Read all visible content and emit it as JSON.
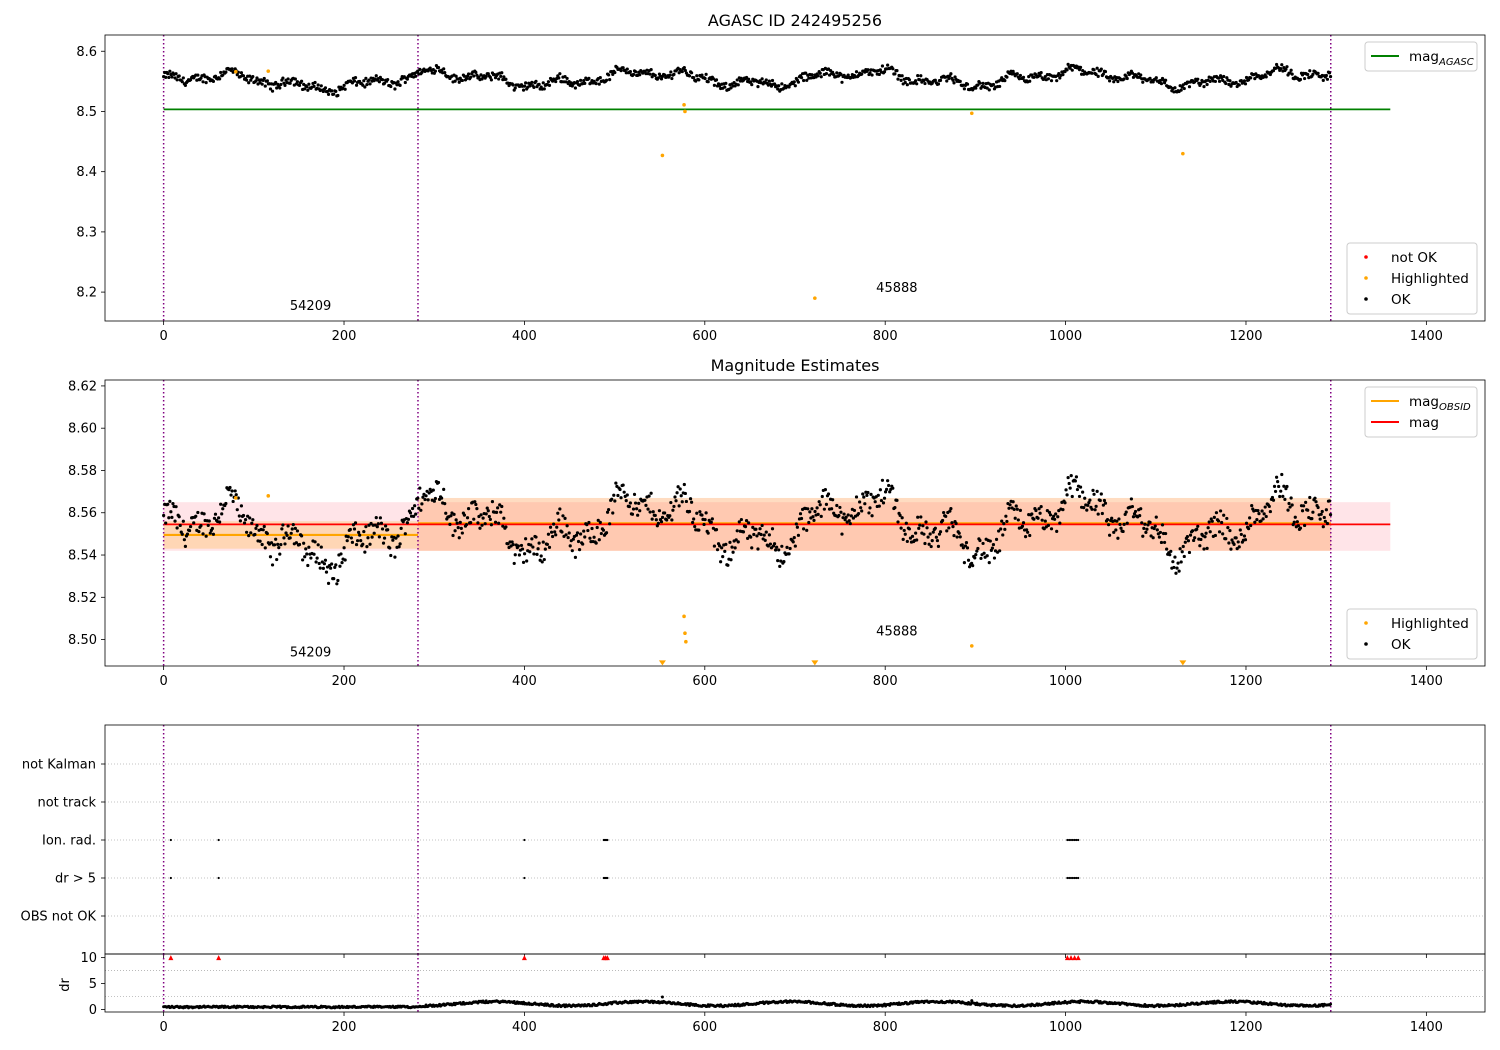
{
  "chart_data": [
    {
      "type": "scatter",
      "title": "AGASC ID 242495256",
      "xlim": [
        -65,
        1465
      ],
      "ylim": [
        8.152,
        8.627
      ],
      "xticks": [
        0,
        200,
        400,
        600,
        800,
        1000,
        1200,
        1400
      ],
      "yticks": [
        8.2,
        8.3,
        8.4,
        8.5,
        8.6
      ],
      "obs_boundaries": [
        0,
        282,
        1294
      ],
      "obsids": [
        {
          "label": "54209",
          "x": 140,
          "y": 8.17
        },
        {
          "label": "45888",
          "x": 790,
          "y": 8.2
        }
      ],
      "lines": [
        {
          "name": "mag_AGASC",
          "y": 8.5035,
          "x": [
            0,
            1360
          ],
          "color": "#008000"
        }
      ],
      "series": [
        {
          "name": "not OK",
          "color": "#ff0000",
          "points": []
        },
        {
          "name": "Highlighted",
          "color": "#ffa500",
          "points": [
            [
              553,
              8.427
            ],
            [
              577,
              8.511
            ],
            [
              578,
              8.5
            ],
            [
              722,
              8.19
            ],
            [
              896,
              8.497
            ],
            [
              1130,
              8.43
            ],
            [
              80,
              8.566
            ],
            [
              116,
              8.567
            ]
          ]
        },
        {
          "name": "OK",
          "color": "#000000",
          "generated": "ok_series"
        }
      ],
      "legends": [
        {
          "position": "upper right",
          "entries": [
            {
              "type": "line",
              "label": "mag",
              "sub": "AGASC",
              "color": "#008000"
            }
          ]
        },
        {
          "position": "lower right",
          "entries": [
            {
              "type": "dot",
              "label": "not OK",
              "color": "#ff0000"
            },
            {
              "type": "dot",
              "label": "Highlighted",
              "color": "#ffa500"
            },
            {
              "type": "dot",
              "label": "OK",
              "color": "#000000"
            }
          ]
        }
      ]
    },
    {
      "type": "scatter",
      "title": "Magnitude Estimates",
      "xlim": [
        -65,
        1465
      ],
      "ylim": [
        8.4875,
        8.6228
      ],
      "xticks": [
        0,
        200,
        400,
        600,
        800,
        1000,
        1200,
        1400
      ],
      "yticks": [
        8.5,
        8.52,
        8.54,
        8.56,
        8.58,
        8.6,
        8.62
      ],
      "ytick_labels": [
        "8.50",
        "8.52",
        "8.54",
        "8.56",
        "8.58",
        "8.60",
        "8.62"
      ],
      "obs_boundaries": [
        0,
        282,
        1294
      ],
      "obsids": [
        {
          "label": "54209",
          "x": 140,
          "y": 8.492
        },
        {
          "label": "45888",
          "x": 790,
          "y": 8.502
        }
      ],
      "bands": [
        {
          "x": [
            0,
            1360
          ],
          "y": [
            8.542,
            8.565
          ],
          "color": "rgba(255,105,130,0.18)"
        },
        {
          "x": [
            0,
            282
          ],
          "y": [
            8.543,
            8.556
          ],
          "color": "rgba(255,165,0,0.22)"
        },
        {
          "x": [
            282,
            1294
          ],
          "y": [
            8.542,
            8.567
          ],
          "color": "rgba(255,140,50,0.30)"
        }
      ],
      "lines": [
        {
          "name": "mag_OBSID",
          "segments": [
            {
              "x": [
                0,
                282
              ],
              "y": 8.5495
            },
            {
              "x": [
                282,
                1294
              ],
              "y": 8.555
            }
          ],
          "color": "#ffa500"
        },
        {
          "name": "mag",
          "y": 8.5545,
          "x": [
            0,
            1360
          ],
          "color": "#ff0000"
        }
      ],
      "series": [
        {
          "name": "Highlighted",
          "color": "#ffa500",
          "points": [
            [
              577,
              8.511
            ],
            [
              578,
              8.503
            ],
            [
              579,
              8.499
            ],
            [
              896,
              8.497
            ],
            [
              80,
              8.567
            ],
            [
              116,
              8.568
            ]
          ]
        },
        {
          "name": "Highlighted (off scale)",
          "color": "#ffa500",
          "marker": "triangle-down",
          "points": [
            [
              553,
              8.4885
            ],
            [
              722,
              8.4885
            ],
            [
              1130,
              8.4885
            ]
          ]
        },
        {
          "name": "OK",
          "color": "#000000",
          "generated": "ok_series"
        }
      ],
      "legends": [
        {
          "position": "upper right",
          "entries": [
            {
              "type": "line",
              "label": "mag",
              "sub": "OBSID",
              "color": "#ffa500"
            },
            {
              "type": "line",
              "label": "mag",
              "color": "#ff0000"
            }
          ]
        },
        {
          "position": "lower right",
          "entries": [
            {
              "type": "dot",
              "label": "Highlighted",
              "color": "#ffa500"
            },
            {
              "type": "dot",
              "label": "OK",
              "color": "#000000"
            }
          ]
        }
      ]
    },
    {
      "type": "scatter",
      "title": "",
      "xlim": [
        -65,
        1465
      ],
      "xticks": [
        0,
        200,
        400,
        600,
        800,
        1000,
        1200,
        1400
      ],
      "obs_boundaries": [
        0,
        282,
        1294
      ],
      "flag_rows": [
        "not Kalman",
        "not track",
        "Ion. rad.",
        "dr > 5",
        "OBS not OK"
      ],
      "flag_points": {
        "Ion. rad.": [
          8,
          61,
          400,
          488,
          489,
          490,
          491,
          492,
          1002,
          1004,
          1006,
          1008,
          1010,
          1012,
          1014
        ],
        "dr > 5": [
          8,
          61,
          400,
          488,
          489,
          490,
          491,
          492,
          1002,
          1004,
          1006,
          1008,
          1010,
          1012,
          1014
        ]
      }
    },
    {
      "type": "scatter",
      "title": "",
      "ylabel": "dr",
      "xlim": [
        -65,
        1465
      ],
      "ylim": [
        -0.5,
        10.7
      ],
      "yticks": [
        0,
        5,
        10
      ],
      "xticks": [
        0,
        200,
        400,
        600,
        800,
        1000,
        1200,
        1400
      ],
      "obs_boundaries": [
        0,
        282,
        1294
      ],
      "series": [
        {
          "name": "dr > 5 (clipped)",
          "color": "#ff0000",
          "marker": "triangle-up",
          "points": [
            [
              8,
              10
            ],
            [
              61,
              10
            ],
            [
              400,
              10
            ],
            [
              488,
              10
            ],
            [
              490,
              10
            ],
            [
              492,
              10
            ],
            [
              1002,
              10
            ],
            [
              1006,
              10
            ],
            [
              1010,
              10
            ],
            [
              1014,
              10
            ]
          ]
        },
        {
          "name": "dr",
          "color": "#000000",
          "generated": "dr_series"
        }
      ]
    }
  ]
}
